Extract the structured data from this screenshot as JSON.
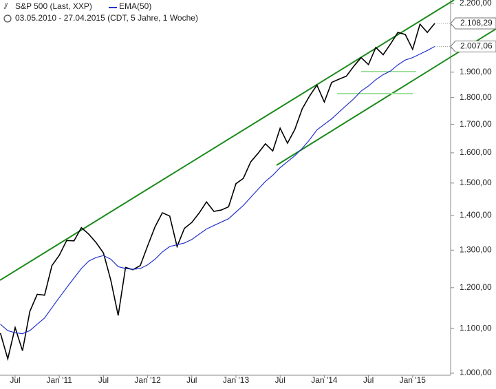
{
  "chart_data": {
    "type": "line",
    "title": "S&P 500 (Last, XXP)",
    "subtitle": "03.05.2010 - 27.04.2015 (CDT, 5 Jahre, 1 Woche)",
    "log": true,
    "grid": false,
    "categories": [
      null,
      null,
      "Jul",
      null,
      null,
      null,
      null,
      null,
      "Jan '11",
      null,
      null,
      null,
      null,
      null,
      "Jul",
      null,
      null,
      null,
      null,
      null,
      "Jan '12",
      null,
      null,
      null,
      null,
      null,
      "Jul",
      null,
      null,
      null,
      null,
      null,
      "Jan '13",
      null,
      null,
      null,
      null,
      null,
      "Jul",
      null,
      null,
      null,
      null,
      null,
      "Jan '14",
      null,
      null,
      null,
      null,
      null,
      "Jul",
      null,
      null,
      null,
      null,
      null,
      "Jan '15",
      null,
      null,
      null
    ],
    "series": [
      {
        "name": "S&P 500 (Last, XXP)",
        "color": "#000000",
        "values": [
          1089,
          1031,
          1102,
          1049,
          1141,
          1183,
          1181,
          1258,
          1286,
          1327,
          1326,
          1364,
          1345,
          1321,
          1292,
          1219,
          1131,
          1253,
          1247,
          1258,
          1312,
          1366,
          1408,
          1398,
          1310,
          1362,
          1379,
          1407,
          1441,
          1412,
          1416,
          1426,
          1498,
          1515,
          1569,
          1598,
          1631,
          1606,
          1686,
          1633,
          1682,
          1757,
          1806,
          1848,
          1783,
          1859,
          1872,
          1884,
          1924,
          1960,
          1931,
          2003,
          1972,
          2018,
          2068,
          2059,
          1995,
          2105,
          2068,
          2108.29
        ],
        "value_labels": [
          null,
          null,
          null,
          null,
          null,
          null,
          null,
          null,
          null,
          null,
          null,
          null,
          null,
          null,
          null,
          null,
          null,
          null,
          null,
          null,
          null,
          null,
          null,
          null,
          null,
          null,
          null,
          null,
          null,
          null,
          null,
          null,
          null,
          null,
          null,
          null,
          null,
          null,
          null,
          null,
          null,
          null,
          null,
          null,
          null,
          null,
          null,
          null,
          null,
          null,
          null,
          null,
          null,
          null,
          null,
          null,
          null,
          null,
          null,
          "2.108,29"
        ]
      },
      {
        "name": "EMA(50)",
        "color": "#2233cc",
        "values": [
          1110,
          1095,
          1090,
          1088,
          1095,
          1110,
          1125,
          1150,
          1175,
          1200,
          1225,
          1250,
          1270,
          1280,
          1285,
          1275,
          1255,
          1250,
          1248,
          1250,
          1260,
          1275,
          1295,
          1310,
          1315,
          1320,
          1330,
          1345,
          1360,
          1370,
          1380,
          1390,
          1410,
          1430,
          1455,
          1480,
          1505,
          1525,
          1550,
          1570,
          1590,
          1615,
          1645,
          1680,
          1700,
          1720,
          1745,
          1770,
          1795,
          1825,
          1845,
          1870,
          1890,
          1905,
          1930,
          1950,
          1960,
          1975,
          1990,
          2007.06
        ],
        "value_labels": [
          null,
          null,
          null,
          null,
          null,
          null,
          null,
          null,
          null,
          null,
          null,
          null,
          null,
          null,
          null,
          null,
          null,
          null,
          null,
          null,
          null,
          null,
          null,
          null,
          null,
          null,
          null,
          null,
          null,
          null,
          null,
          null,
          null,
          null,
          null,
          null,
          null,
          null,
          null,
          null,
          null,
          null,
          null,
          null,
          null,
          null,
          null,
          null,
          null,
          null,
          null,
          null,
          null,
          null,
          null,
          null,
          null,
          null,
          null,
          "2.007,06"
        ]
      }
    ],
    "ylim": [
      1000,
      2200
    ],
    "yticks": [
      {
        "value": 1000,
        "label": "1.000,00"
      },
      {
        "value": 1100,
        "label": "1.100,00"
      },
      {
        "value": 1200,
        "label": "1.200,00"
      },
      {
        "value": 1300,
        "label": "1.300,00"
      },
      {
        "value": 1400,
        "label": "1.400,00"
      },
      {
        "value": 1500,
        "label": "1.500,00"
      },
      {
        "value": 1600,
        "label": "1.600,00"
      },
      {
        "value": 1700,
        "label": "1.700,00"
      },
      {
        "value": 1800,
        "label": "1.800,00"
      },
      {
        "value": 1900,
        "label": "1.900,00"
      },
      {
        "value": 2000,
        "label": "2.000,00"
      },
      {
        "value": 2100,
        "label": "2.100,00"
      },
      {
        "value": 2200,
        "label": "2.200,00"
      }
    ]
  }
}
